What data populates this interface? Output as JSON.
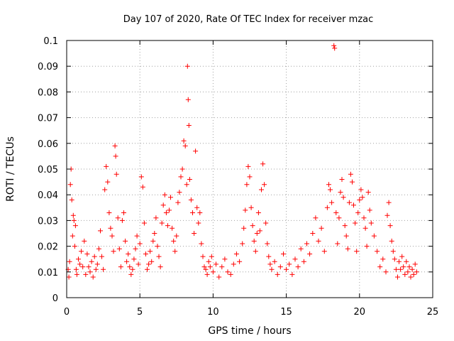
{
  "chart_data": {
    "type": "scatter",
    "title": "Day 107 of 2020, Rate Of TEC Index for receiver mzac",
    "xlabel": "GPS time / hours",
    "ylabel": "ROTI / TECUs",
    "xlim": [
      0,
      25
    ],
    "ylim": [
      0,
      0.1
    ],
    "xticks": [
      "0",
      "5",
      "10",
      "15",
      "20",
      "25"
    ],
    "yticks": [
      "0",
      "0.01",
      "0.02",
      "0.03",
      "0.04",
      "0.05",
      "0.06",
      "0.07",
      "0.08",
      "0.09",
      "0.1"
    ],
    "grid": true,
    "marker": "plus",
    "marker_color": "#ff0000",
    "series": [
      {
        "points": [
          [
            0.1,
            0.011
          ],
          [
            0.15,
            0.008
          ],
          [
            0.2,
            0.014
          ],
          [
            0.25,
            0.044
          ],
          [
            0.3,
            0.05
          ],
          [
            0.35,
            0.038
          ],
          [
            0.4,
            0.024
          ],
          [
            0.45,
            0.032
          ],
          [
            0.5,
            0.03
          ],
          [
            0.55,
            0.02
          ],
          [
            0.6,
            0.028
          ],
          [
            0.65,
            0.011
          ],
          [
            0.7,
            0.009
          ],
          [
            0.8,
            0.015
          ],
          [
            0.9,
            0.013
          ],
          [
            1.0,
            0.018
          ],
          [
            1.1,
            0.012
          ],
          [
            1.2,
            0.022
          ],
          [
            1.3,
            0.009
          ],
          [
            1.4,
            0.017
          ],
          [
            1.5,
            0.012
          ],
          [
            1.6,
            0.01
          ],
          [
            1.7,
            0.014
          ],
          [
            1.8,
            0.008
          ],
          [
            1.9,
            0.016
          ],
          [
            2.0,
            0.011
          ],
          [
            2.1,
            0.013
          ],
          [
            2.2,
            0.019
          ],
          [
            2.3,
            0.026
          ],
          [
            2.4,
            0.016
          ],
          [
            2.5,
            0.011
          ],
          [
            2.6,
            0.042
          ],
          [
            2.7,
            0.051
          ],
          [
            2.8,
            0.045
          ],
          [
            2.9,
            0.033
          ],
          [
            3.0,
            0.027
          ],
          [
            3.1,
            0.024
          ],
          [
            3.2,
            0.018
          ],
          [
            3.3,
            0.059
          ],
          [
            3.35,
            0.055
          ],
          [
            3.4,
            0.048
          ],
          [
            3.5,
            0.031
          ],
          [
            3.6,
            0.019
          ],
          [
            3.7,
            0.012
          ],
          [
            3.8,
            0.03
          ],
          [
            3.9,
            0.033
          ],
          [
            4.0,
            0.022
          ],
          [
            4.1,
            0.014
          ],
          [
            4.2,
            0.017
          ],
          [
            4.3,
            0.012
          ],
          [
            4.4,
            0.009
          ],
          [
            4.5,
            0.011
          ],
          [
            4.6,
            0.015
          ],
          [
            4.7,
            0.019
          ],
          [
            4.8,
            0.024
          ],
          [
            4.9,
            0.013
          ],
          [
            5.0,
            0.021
          ],
          [
            5.1,
            0.047
          ],
          [
            5.2,
            0.043
          ],
          [
            5.3,
            0.029
          ],
          [
            5.4,
            0.017
          ],
          [
            5.5,
            0.011
          ],
          [
            5.6,
            0.013
          ],
          [
            5.7,
            0.018
          ],
          [
            5.8,
            0.014
          ],
          [
            5.9,
            0.022
          ],
          [
            6.0,
            0.025
          ],
          [
            6.1,
            0.031
          ],
          [
            6.2,
            0.02
          ],
          [
            6.3,
            0.016
          ],
          [
            6.4,
            0.012
          ],
          [
            6.5,
            0.029
          ],
          [
            6.6,
            0.036
          ],
          [
            6.7,
            0.04
          ],
          [
            6.8,
            0.033
          ],
          [
            6.9,
            0.028
          ],
          [
            7.0,
            0.034
          ],
          [
            7.1,
            0.039
          ],
          [
            7.2,
            0.027
          ],
          [
            7.3,
            0.022
          ],
          [
            7.4,
            0.018
          ],
          [
            7.5,
            0.024
          ],
          [
            7.6,
            0.037
          ],
          [
            7.7,
            0.041
          ],
          [
            7.8,
            0.047
          ],
          [
            7.9,
            0.05
          ],
          [
            8.0,
            0.061
          ],
          [
            8.1,
            0.059
          ],
          [
            8.2,
            0.044
          ],
          [
            8.25,
            0.09
          ],
          [
            8.3,
            0.077
          ],
          [
            8.35,
            0.067
          ],
          [
            8.4,
            0.046
          ],
          [
            8.5,
            0.038
          ],
          [
            8.6,
            0.033
          ],
          [
            8.7,
            0.025
          ],
          [
            8.8,
            0.057
          ],
          [
            8.9,
            0.035
          ],
          [
            9.0,
            0.029
          ],
          [
            9.1,
            0.033
          ],
          [
            9.2,
            0.021
          ],
          [
            9.3,
            0.016
          ],
          [
            9.4,
            0.012
          ],
          [
            9.5,
            0.011
          ],
          [
            9.6,
            0.009
          ],
          [
            9.7,
            0.014
          ],
          [
            9.8,
            0.012
          ],
          [
            9.9,
            0.016
          ],
          [
            10.0,
            0.01
          ],
          [
            10.2,
            0.013
          ],
          [
            10.4,
            0.008
          ],
          [
            10.6,
            0.012
          ],
          [
            10.8,
            0.015
          ],
          [
            11.0,
            0.01
          ],
          [
            11.2,
            0.009
          ],
          [
            11.4,
            0.013
          ],
          [
            11.6,
            0.017
          ],
          [
            11.8,
            0.014
          ],
          [
            12.0,
            0.021
          ],
          [
            12.1,
            0.027
          ],
          [
            12.2,
            0.034
          ],
          [
            12.3,
            0.044
          ],
          [
            12.4,
            0.051
          ],
          [
            12.5,
            0.047
          ],
          [
            12.6,
            0.035
          ],
          [
            12.7,
            0.028
          ],
          [
            12.8,
            0.022
          ],
          [
            12.9,
            0.018
          ],
          [
            13.0,
            0.025
          ],
          [
            13.1,
            0.033
          ],
          [
            13.2,
            0.026
          ],
          [
            13.3,
            0.042
          ],
          [
            13.4,
            0.052
          ],
          [
            13.5,
            0.044
          ],
          [
            13.6,
            0.029
          ],
          [
            13.7,
            0.021
          ],
          [
            13.8,
            0.016
          ],
          [
            13.9,
            0.013
          ],
          [
            14.0,
            0.011
          ],
          [
            14.2,
            0.014
          ],
          [
            14.4,
            0.009
          ],
          [
            14.6,
            0.012
          ],
          [
            14.8,
            0.017
          ],
          [
            15.0,
            0.011
          ],
          [
            15.2,
            0.013
          ],
          [
            15.4,
            0.009
          ],
          [
            15.6,
            0.015
          ],
          [
            15.8,
            0.012
          ],
          [
            16.0,
            0.019
          ],
          [
            16.2,
            0.014
          ],
          [
            16.4,
            0.021
          ],
          [
            16.6,
            0.017
          ],
          [
            16.8,
            0.025
          ],
          [
            17.0,
            0.031
          ],
          [
            17.2,
            0.022
          ],
          [
            17.4,
            0.027
          ],
          [
            17.6,
            0.018
          ],
          [
            17.8,
            0.035
          ],
          [
            17.9,
            0.044
          ],
          [
            18.0,
            0.042
          ],
          [
            18.1,
            0.037
          ],
          [
            18.25,
            0.098
          ],
          [
            18.3,
            0.097
          ],
          [
            18.4,
            0.033
          ],
          [
            18.5,
            0.021
          ],
          [
            18.6,
            0.031
          ],
          [
            18.7,
            0.041
          ],
          [
            18.8,
            0.046
          ],
          [
            18.9,
            0.039
          ],
          [
            19.0,
            0.028
          ],
          [
            19.1,
            0.024
          ],
          [
            19.2,
            0.019
          ],
          [
            19.3,
            0.037
          ],
          [
            19.4,
            0.048
          ],
          [
            19.5,
            0.045
          ],
          [
            19.6,
            0.036
          ],
          [
            19.7,
            0.029
          ],
          [
            19.8,
            0.018
          ],
          [
            19.9,
            0.033
          ],
          [
            20.0,
            0.038
          ],
          [
            20.1,
            0.042
          ],
          [
            20.2,
            0.039
          ],
          [
            20.3,
            0.031
          ],
          [
            20.4,
            0.027
          ],
          [
            20.5,
            0.02
          ],
          [
            20.6,
            0.041
          ],
          [
            20.7,
            0.034
          ],
          [
            20.8,
            0.029
          ],
          [
            21.0,
            0.024
          ],
          [
            21.2,
            0.018
          ],
          [
            21.4,
            0.012
          ],
          [
            21.6,
            0.015
          ],
          [
            21.8,
            0.01
          ],
          [
            21.9,
            0.032
          ],
          [
            22.0,
            0.037
          ],
          [
            22.1,
            0.028
          ],
          [
            22.2,
            0.022
          ],
          [
            22.3,
            0.018
          ],
          [
            22.4,
            0.015
          ],
          [
            22.5,
            0.011
          ],
          [
            22.6,
            0.008
          ],
          [
            22.7,
            0.014
          ],
          [
            22.8,
            0.011
          ],
          [
            22.9,
            0.016
          ],
          [
            23.0,
            0.012
          ],
          [
            23.1,
            0.009
          ],
          [
            23.2,
            0.014
          ],
          [
            23.3,
            0.01
          ],
          [
            23.4,
            0.012
          ],
          [
            23.5,
            0.008
          ],
          [
            23.6,
            0.011
          ],
          [
            23.7,
            0.009
          ],
          [
            23.8,
            0.013
          ],
          [
            23.9,
            0.01
          ]
        ]
      }
    ]
  }
}
